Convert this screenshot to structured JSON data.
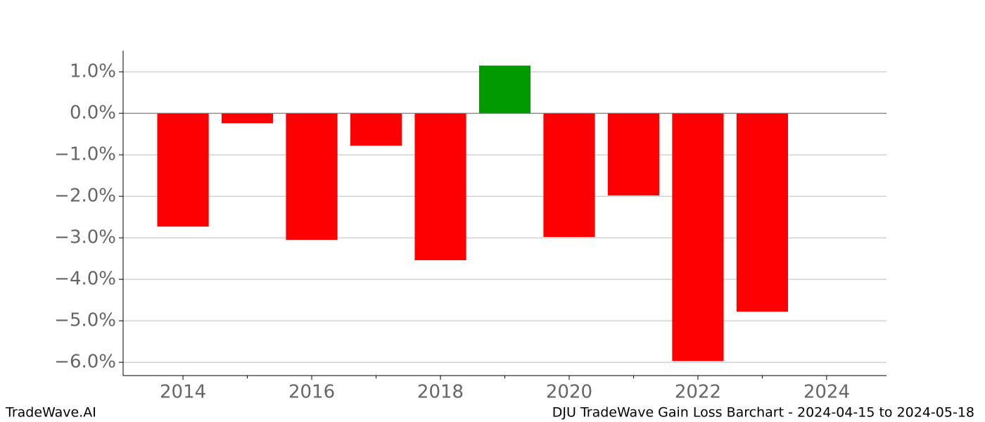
{
  "chart_data": {
    "type": "bar",
    "x": [
      2014,
      2015,
      2016,
      2017,
      2018,
      2019,
      2020,
      2021,
      2022,
      2023
    ],
    "values": [
      -2.73,
      -0.24,
      -3.05,
      -0.78,
      -3.54,
      1.15,
      -2.98,
      -1.98,
      -5.97,
      -4.78
    ],
    "colors": [
      "#ff0000",
      "#ff0000",
      "#ff0000",
      "#ff0000",
      "#ff0000",
      "#009900",
      "#ff0000",
      "#ff0000",
      "#ff0000",
      "#ff0000"
    ],
    "xlim": [
      2013.07,
      2024.93
    ],
    "xticks": [
      2014,
      2016,
      2018,
      2020,
      2022,
      2024
    ],
    "xminorticks": [
      2015,
      2017,
      2019,
      2021,
      2023
    ],
    "ylim": [
      -6.32,
      1.51
    ],
    "yticks": [
      {
        "value": 1,
        "label": "1.0%"
      },
      {
        "value": 0,
        "label": "0.0%"
      },
      {
        "value": -1,
        "label": "−1.0%"
      },
      {
        "value": -2,
        "label": "−2.0%"
      },
      {
        "value": -3,
        "label": "−3.0%"
      },
      {
        "value": -4,
        "label": "−4.0%"
      },
      {
        "value": -5,
        "label": "−5.0%"
      },
      {
        "value": -6,
        "label": "−6.0%"
      }
    ],
    "grid": true,
    "footer_left": "TradeWave.AI",
    "footer_right": "DJU TradeWave Gain Loss Barchart - 2024-04-15 to 2024-05-18"
  }
}
